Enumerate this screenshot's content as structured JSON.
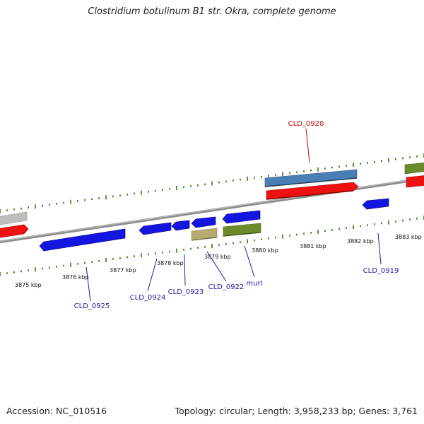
{
  "title": "Clostridium botulinum B1 str. Okra, complete genome",
  "footer": {
    "accession": "Accession: NC_010516",
    "topology": "Topology: circular; Length: 3,958,233 bp; Genes: 3,761"
  },
  "scale_labels": [
    "3875 kbp",
    "3876 kbp",
    "3877 kbp",
    "3878 kbp",
    "3879 kbp",
    "3880 kbp",
    "3881 kbp",
    "3882 kbp",
    "3883 kbp"
  ],
  "gene_labels": [
    "CLD_0920",
    "CLD_0925",
    "CLD_0924",
    "CLD_0923",
    "CLD_0922",
    "murI",
    "CLD_0919"
  ],
  "colors": {
    "backbone": "#7a7a7a",
    "tick": "#2e7d12",
    "gene_blue": "#1515e0",
    "gene_red": "#ee1111",
    "gene_steelblue": "#4a7fb5",
    "gene_olive": "#6b8a2a",
    "gene_khaki": "#b5ab70",
    "gene_gray": "#bdbdbd",
    "label_blue": "#1a1aaa",
    "label_red": "#cc0000"
  }
}
